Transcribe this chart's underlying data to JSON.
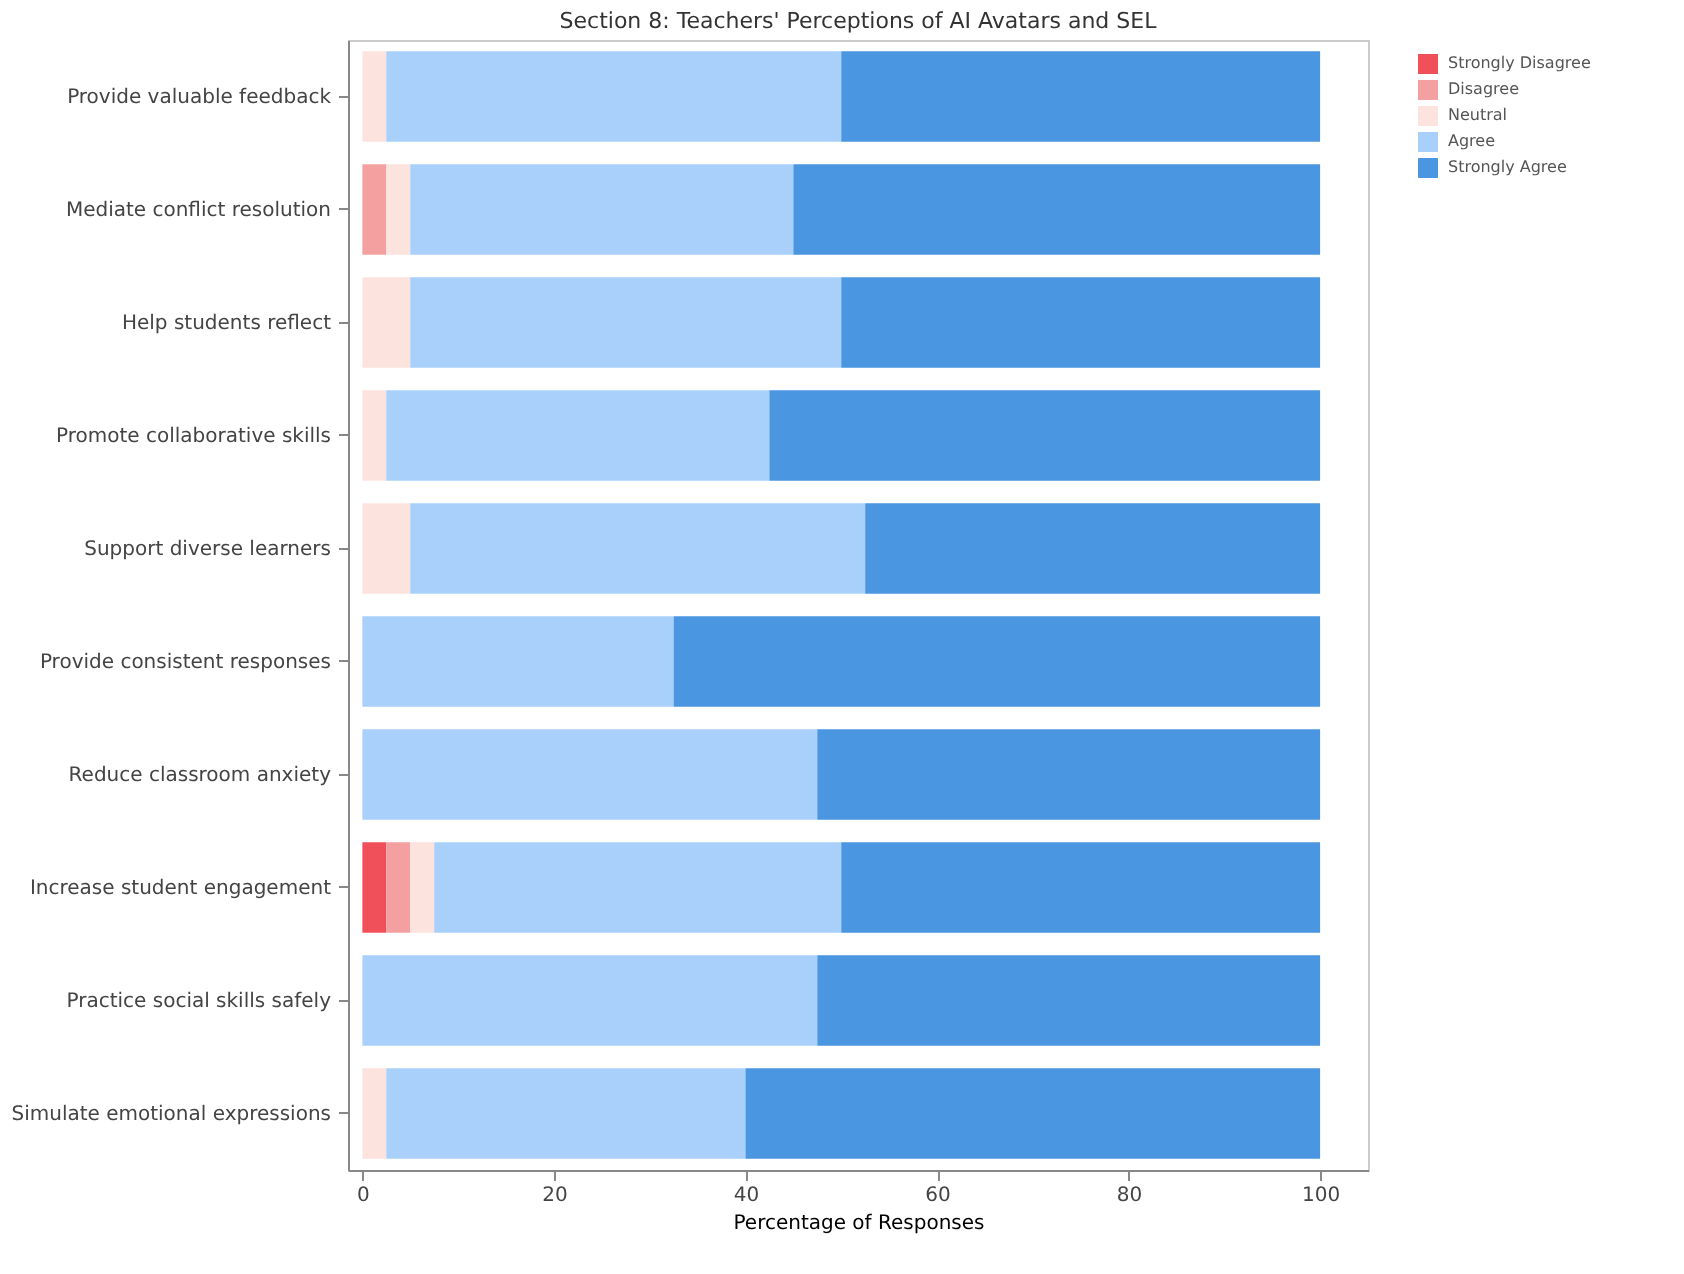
{
  "chart_data": {
    "type": "bar",
    "orientation": "horizontal",
    "stacked": true,
    "title": "Section 8: Teachers' Perceptions of AI Avatars and SEL",
    "xlabel": "Percentage of Responses",
    "categories": [
      "Provide valuable feedback",
      "Mediate conflict resolution",
      "Help students reflect",
      "Promote collaborative skills",
      "Support diverse learners",
      "Provide consistent responses",
      "Reduce classroom anxiety",
      "Increase student engagement",
      "Practice social skills safely",
      "Simulate emotional expressions"
    ],
    "series": [
      {
        "name": "Strongly Disagree",
        "color": "#f0505a",
        "values": [
          0,
          0,
          0,
          0,
          0,
          0,
          0,
          2.5,
          0,
          0
        ]
      },
      {
        "name": "Disagree",
        "color": "#f4a0a0",
        "values": [
          0,
          2.5,
          0,
          0,
          0,
          0,
          0,
          2.5,
          0,
          0
        ]
      },
      {
        "name": "Neutral",
        "color": "#fde3de",
        "values": [
          2.5,
          2.5,
          5,
          2.5,
          5,
          0,
          0,
          2.5,
          0,
          2.5
        ]
      },
      {
        "name": "Agree",
        "color": "#a8d0fa",
        "values": [
          47.5,
          40,
          45,
          40,
          47.5,
          32.5,
          47.5,
          42.5,
          47.5,
          37.5
        ]
      },
      {
        "name": "Strongly Agree",
        "color": "#4a96e0",
        "values": [
          50,
          55,
          50,
          57.5,
          47.5,
          67.5,
          52.5,
          50,
          52.5,
          60
        ]
      }
    ],
    "xlim": [
      -1.5,
      105
    ],
    "xticks": [
      0,
      20,
      40,
      60,
      80,
      100
    ],
    "grid": false,
    "legend": "right"
  }
}
